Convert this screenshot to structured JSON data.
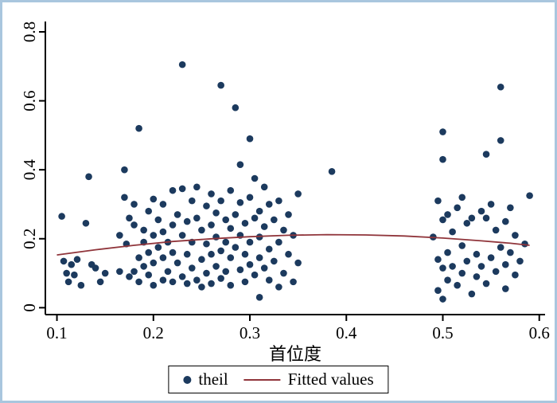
{
  "figure": {
    "xlabel": "首位度",
    "colors": {
      "scatter": "#1c3a5e",
      "fitted_line": "#90353B",
      "axis": "#000000",
      "frame_border": "#a9c6de",
      "background": "#ffffff"
    }
  },
  "chart_data": {
    "type": "scatter",
    "title": "",
    "xlabel": "首位度",
    "ylabel": "",
    "xlim": [
      0.1,
      0.6
    ],
    "ylim": [
      0,
      0.8
    ],
    "xticks": [
      0.1,
      0.2,
      0.3,
      0.4,
      0.5,
      0.6
    ],
    "xtick_labels": [
      "0.1",
      "0.2",
      "0.3",
      "0.4",
      "0.5",
      "0.6"
    ],
    "yticks": [
      0,
      0.2,
      0.4,
      0.6,
      0.8
    ],
    "ytick_labels": [
      "0",
      "0.2",
      "0.4",
      "0.6",
      "0.8"
    ],
    "grid": false,
    "legend": [
      "theil",
      "Fitted values"
    ],
    "legend_position": "bottom",
    "series": [
      {
        "name": "theil",
        "type": "scatter",
        "color": "#1c3a5e",
        "points": [
          [
            0.105,
            0.265
          ],
          [
            0.107,
            0.135
          ],
          [
            0.11,
            0.1
          ],
          [
            0.112,
            0.075
          ],
          [
            0.115,
            0.125
          ],
          [
            0.118,
            0.095
          ],
          [
            0.121,
            0.14
          ],
          [
            0.125,
            0.065
          ],
          [
            0.13,
            0.245
          ],
          [
            0.133,
            0.38
          ],
          [
            0.136,
            0.125
          ],
          [
            0.14,
            0.115
          ],
          [
            0.145,
            0.075
          ],
          [
            0.15,
            0.1
          ],
          [
            0.165,
            0.21
          ],
          [
            0.165,
            0.105
          ],
          [
            0.17,
            0.4
          ],
          [
            0.17,
            0.32
          ],
          [
            0.172,
            0.185
          ],
          [
            0.175,
            0.26
          ],
          [
            0.175,
            0.09
          ],
          [
            0.18,
            0.3
          ],
          [
            0.18,
            0.24
          ],
          [
            0.18,
            0.105
          ],
          [
            0.185,
            0.52
          ],
          [
            0.185,
            0.145
          ],
          [
            0.185,
            0.075
          ],
          [
            0.19,
            0.225
          ],
          [
            0.19,
            0.19
          ],
          [
            0.19,
            0.12
          ],
          [
            0.195,
            0.28
          ],
          [
            0.195,
            0.16
          ],
          [
            0.195,
            0.095
          ],
          [
            0.2,
            0.315
          ],
          [
            0.2,
            0.21
          ],
          [
            0.2,
            0.13
          ],
          [
            0.2,
            0.065
          ],
          [
            0.205,
            0.255
          ],
          [
            0.205,
            0.175
          ],
          [
            0.21,
            0.3
          ],
          [
            0.21,
            0.22
          ],
          [
            0.21,
            0.145
          ],
          [
            0.21,
            0.08
          ],
          [
            0.215,
            0.19
          ],
          [
            0.215,
            0.105
          ],
          [
            0.22,
            0.34
          ],
          [
            0.22,
            0.24
          ],
          [
            0.22,
            0.16
          ],
          [
            0.22,
            0.075
          ],
          [
            0.225,
            0.27
          ],
          [
            0.225,
            0.13
          ],
          [
            0.23,
            0.705
          ],
          [
            0.23,
            0.345
          ],
          [
            0.23,
            0.21
          ],
          [
            0.23,
            0.09
          ],
          [
            0.235,
            0.25
          ],
          [
            0.235,
            0.155
          ],
          [
            0.235,
            0.07
          ],
          [
            0.24,
            0.31
          ],
          [
            0.24,
            0.19
          ],
          [
            0.24,
            0.115
          ],
          [
            0.245,
            0.35
          ],
          [
            0.245,
            0.26
          ],
          [
            0.245,
            0.08
          ],
          [
            0.25,
            0.225
          ],
          [
            0.25,
            0.14
          ],
          [
            0.25,
            0.06
          ],
          [
            0.255,
            0.295
          ],
          [
            0.255,
            0.185
          ],
          [
            0.255,
            0.1
          ],
          [
            0.26,
            0.33
          ],
          [
            0.26,
            0.24
          ],
          [
            0.26,
            0.155
          ],
          [
            0.26,
            0.07
          ],
          [
            0.265,
            0.275
          ],
          [
            0.265,
            0.205
          ],
          [
            0.265,
            0.12
          ],
          [
            0.27,
            0.645
          ],
          [
            0.27,
            0.31
          ],
          [
            0.27,
            0.165
          ],
          [
            0.27,
            0.085
          ],
          [
            0.275,
            0.255
          ],
          [
            0.275,
            0.19
          ],
          [
            0.275,
            0.105
          ],
          [
            0.28,
            0.34
          ],
          [
            0.28,
            0.23
          ],
          [
            0.28,
            0.145
          ],
          [
            0.28,
            0.065
          ],
          [
            0.285,
            0.58
          ],
          [
            0.285,
            0.27
          ],
          [
            0.285,
            0.175
          ],
          [
            0.29,
            0.415
          ],
          [
            0.29,
            0.305
          ],
          [
            0.29,
            0.21
          ],
          [
            0.29,
            0.11
          ],
          [
            0.295,
            0.245
          ],
          [
            0.295,
            0.155
          ],
          [
            0.295,
            0.075
          ],
          [
            0.3,
            0.49
          ],
          [
            0.3,
            0.32
          ],
          [
            0.3,
            0.19
          ],
          [
            0.3,
            0.125
          ],
          [
            0.305,
            0.375
          ],
          [
            0.305,
            0.26
          ],
          [
            0.305,
            0.095
          ],
          [
            0.31,
            0.28
          ],
          [
            0.31,
            0.205
          ],
          [
            0.31,
            0.145
          ],
          [
            0.31,
            0.03
          ],
          [
            0.315,
            0.35
          ],
          [
            0.315,
            0.235
          ],
          [
            0.315,
            0.115
          ],
          [
            0.32,
            0.3
          ],
          [
            0.32,
            0.17
          ],
          [
            0.32,
            0.08
          ],
          [
            0.325,
            0.255
          ],
          [
            0.325,
            0.135
          ],
          [
            0.33,
            0.31
          ],
          [
            0.33,
            0.19
          ],
          [
            0.33,
            0.06
          ],
          [
            0.335,
            0.225
          ],
          [
            0.335,
            0.1
          ],
          [
            0.34,
            0.27
          ],
          [
            0.34,
            0.155
          ],
          [
            0.345,
            0.21
          ],
          [
            0.345,
            0.075
          ],
          [
            0.35,
            0.33
          ],
          [
            0.35,
            0.13
          ],
          [
            0.385,
            0.395
          ],
          [
            0.49,
            0.205
          ],
          [
            0.495,
            0.31
          ],
          [
            0.495,
            0.14
          ],
          [
            0.495,
            0.05
          ],
          [
            0.5,
            0.51
          ],
          [
            0.5,
            0.43
          ],
          [
            0.5,
            0.255
          ],
          [
            0.5,
            0.115
          ],
          [
            0.5,
            0.025
          ],
          [
            0.505,
            0.27
          ],
          [
            0.505,
            0.16
          ],
          [
            0.505,
            0.08
          ],
          [
            0.51,
            0.22
          ],
          [
            0.51,
            0.12
          ],
          [
            0.515,
            0.29
          ],
          [
            0.515,
            0.065
          ],
          [
            0.52,
            0.32
          ],
          [
            0.52,
            0.18
          ],
          [
            0.52,
            0.1
          ],
          [
            0.525,
            0.245
          ],
          [
            0.525,
            0.135
          ],
          [
            0.53,
            0.26
          ],
          [
            0.53,
            0.04
          ],
          [
            0.535,
            0.155
          ],
          [
            0.535,
            0.09
          ],
          [
            0.54,
            0.28
          ],
          [
            0.54,
            0.12
          ],
          [
            0.545,
            0.445
          ],
          [
            0.545,
            0.26
          ],
          [
            0.545,
            0.07
          ],
          [
            0.55,
            0.3
          ],
          [
            0.55,
            0.145
          ],
          [
            0.555,
            0.225
          ],
          [
            0.555,
            0.105
          ],
          [
            0.56,
            0.64
          ],
          [
            0.56,
            0.485
          ],
          [
            0.56,
            0.175
          ],
          [
            0.565,
            0.25
          ],
          [
            0.565,
            0.125
          ],
          [
            0.565,
            0.055
          ],
          [
            0.57,
            0.29
          ],
          [
            0.57,
            0.16
          ],
          [
            0.575,
            0.21
          ],
          [
            0.575,
            0.095
          ],
          [
            0.58,
            0.135
          ],
          [
            0.585,
            0.185
          ],
          [
            0.59,
            0.325
          ]
        ]
      },
      {
        "name": "Fitted values",
        "type": "line",
        "color": "#90353B",
        "points": [
          [
            0.1,
            0.153
          ],
          [
            0.14,
            0.168
          ],
          [
            0.18,
            0.181
          ],
          [
            0.22,
            0.192
          ],
          [
            0.26,
            0.2
          ],
          [
            0.3,
            0.206
          ],
          [
            0.34,
            0.21
          ],
          [
            0.38,
            0.212
          ],
          [
            0.42,
            0.211
          ],
          [
            0.46,
            0.208
          ],
          [
            0.5,
            0.202
          ],
          [
            0.54,
            0.194
          ],
          [
            0.57,
            0.187
          ],
          [
            0.59,
            0.181
          ]
        ]
      }
    ]
  }
}
